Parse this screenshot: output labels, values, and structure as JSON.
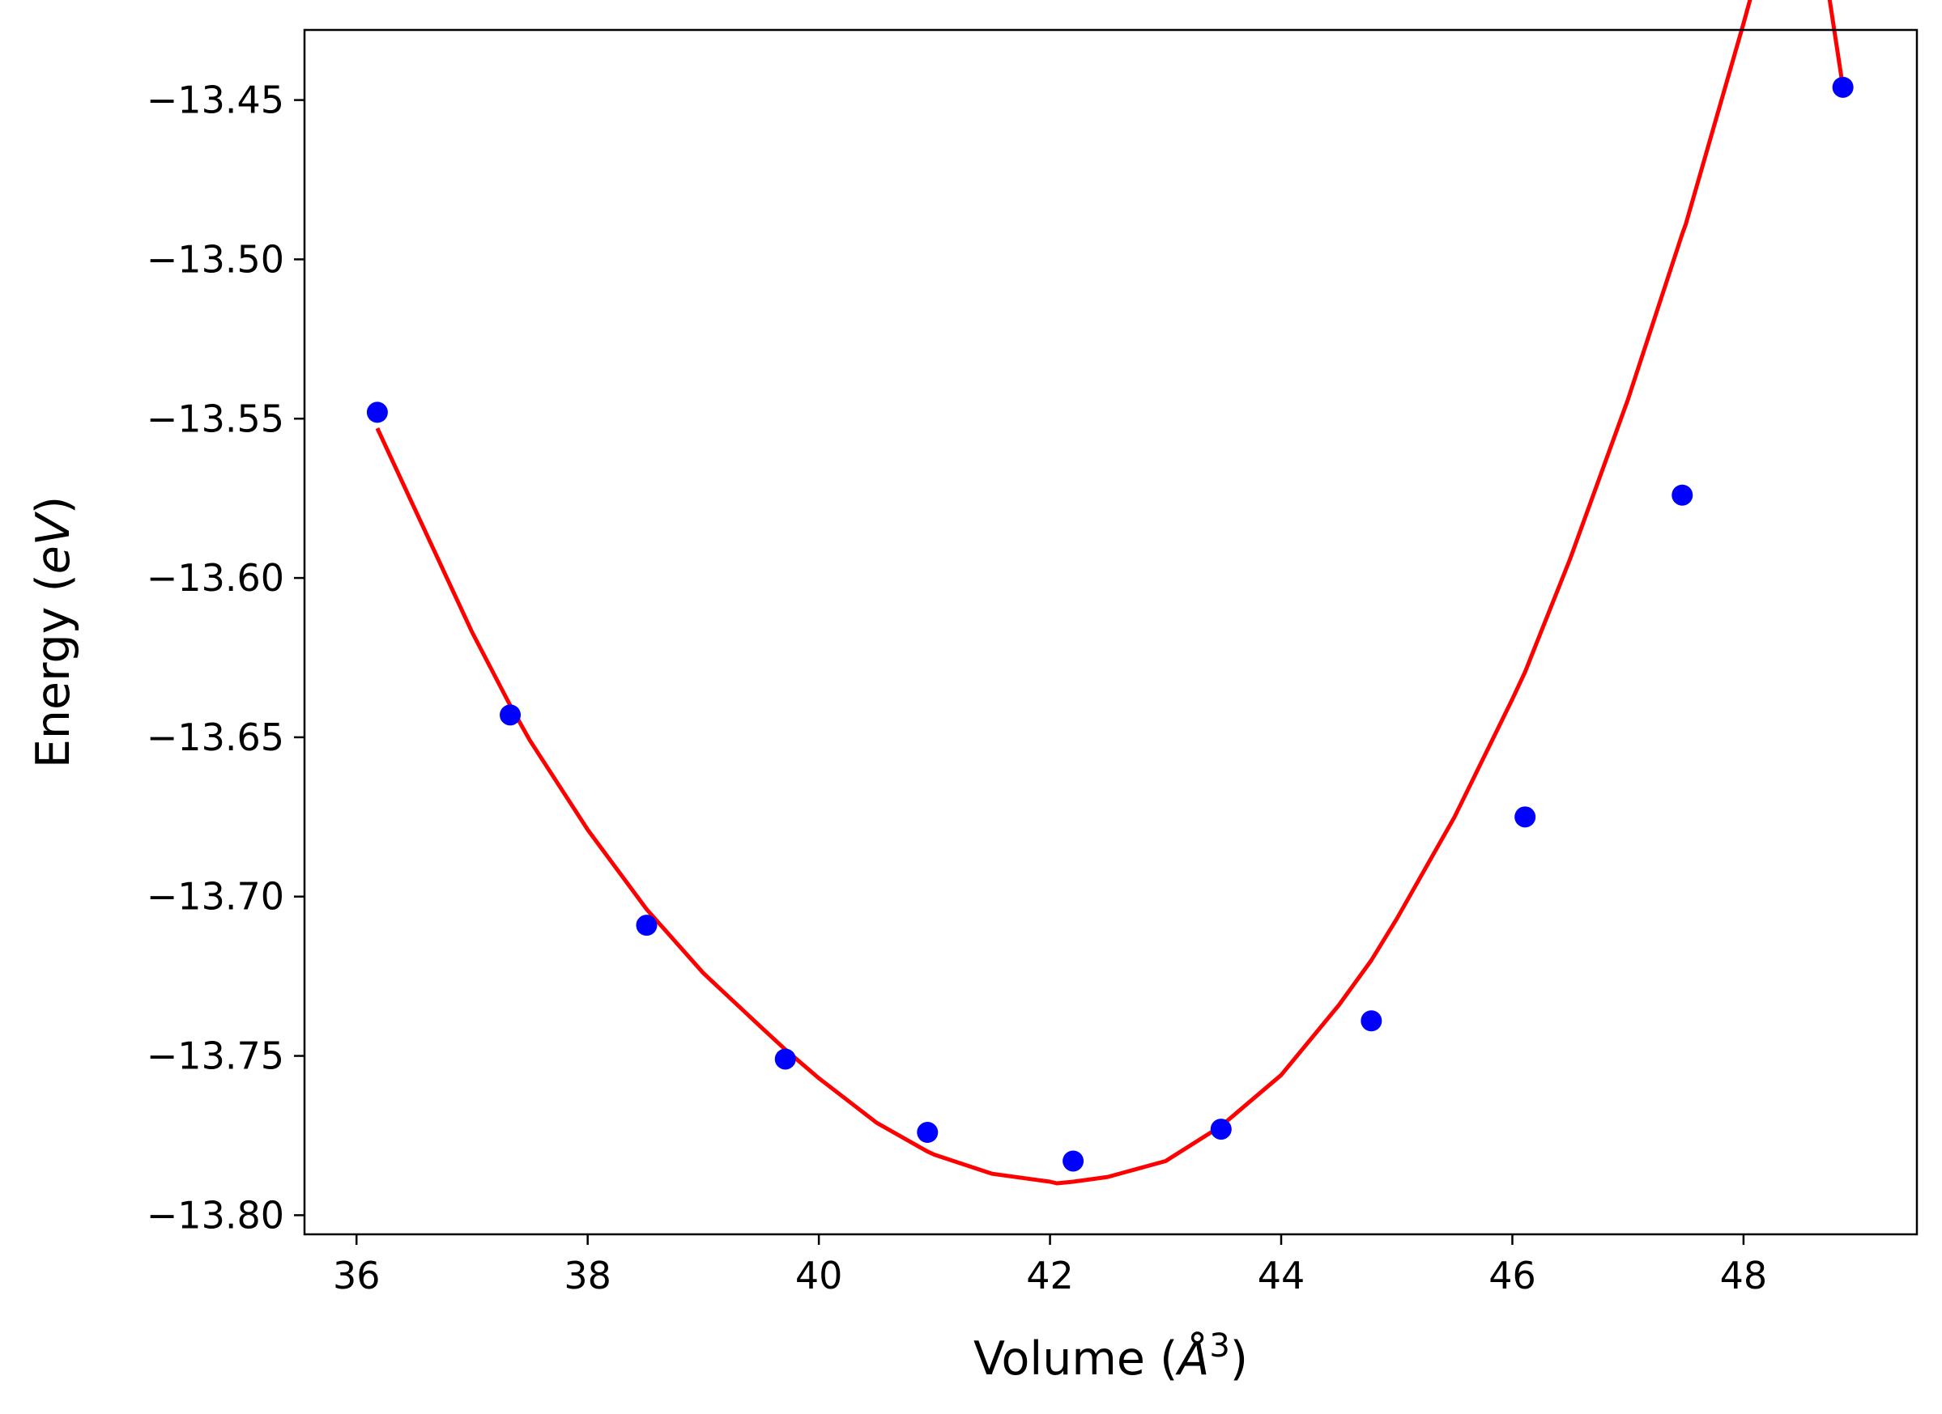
{
  "chart_data": {
    "type": "scatter",
    "title": "",
    "xlabel": "Volume (",
    "xlabel_symbol": "Å",
    "xlabel_exponent": "3",
    "xlabel_close": ")",
    "ylabel": "Energy (",
    "ylabel_unit": "eV",
    "ylabel_close": ")",
    "xlim": [
      35.55,
      49.5
    ],
    "ylim": [
      -13.806,
      -13.428
    ],
    "xticks": [
      36,
      38,
      40,
      42,
      44,
      46,
      48
    ],
    "xtick_labels": [
      "36",
      "38",
      "40",
      "42",
      "44",
      "46",
      "48"
    ],
    "yticks": [
      -13.45,
      -13.5,
      -13.55,
      -13.6,
      -13.65,
      -13.7,
      -13.75,
      -13.8
    ],
    "ytick_labels": [
      "−13.45",
      "−13.50",
      "−13.55",
      "−13.60",
      "−13.65",
      "−13.70",
      "−13.75",
      "−13.80"
    ],
    "grid": false,
    "series": [
      {
        "kind": "scatter",
        "color": "#0000ff",
        "x": [
          36.18,
          37.33,
          38.51,
          39.71,
          40.94,
          42.2,
          43.48,
          44.78,
          46.11,
          47.47,
          48.86
        ],
        "y": [
          -13.548,
          -13.643,
          -13.709,
          -13.751,
          -13.774,
          -13.783,
          -13.773,
          -13.739,
          -13.675,
          -13.574,
          -13.446
        ]
      },
      {
        "kind": "line",
        "color": "#ff0000",
        "x": [
          36.18,
          36.5,
          37.0,
          37.33,
          37.5,
          38.0,
          38.51,
          39.0,
          39.5,
          39.71,
          40.0,
          40.5,
          40.94,
          41.0,
          41.5,
          42.0,
          42.06,
          42.2,
          42.5,
          43.0,
          43.48,
          44.0,
          44.5,
          44.78,
          45.0,
          45.5,
          46.0,
          46.11,
          46.5,
          47.0,
          47.47,
          47.5,
          48.0,
          48.5,
          48.86
        ],
        "y": [
          -13.553,
          -13.578,
          -13.617,
          -13.64,
          -13.651,
          -13.679,
          -13.704,
          -13.724,
          -13.741,
          -13.748,
          -13.757,
          -13.771,
          -13.78,
          -13.781,
          -13.787,
          -13.7895,
          -13.79,
          -13.7895,
          -13.788,
          -13.783,
          -13.772,
          -13.756,
          -13.734,
          -13.72,
          -13.707,
          -13.675,
          -13.638,
          -13.6295,
          -13.594,
          -13.544,
          -13.492,
          -13.489,
          -13.426,
          -13.36,
          -13.446
        ]
      }
    ]
  }
}
